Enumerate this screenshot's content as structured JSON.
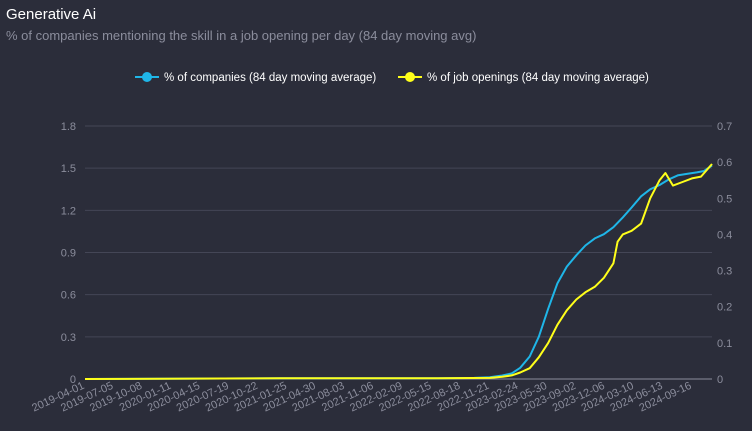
{
  "chart_data": {
    "type": "line",
    "title": "Generative Ai",
    "subtitle": "% of companies mentioning the skill in a job opening per day (84 day moving avg)",
    "xlabel": "",
    "ylabel": "",
    "x_ticks": [
      "2019-04-01",
      "2019-07-05",
      "2019-10-08",
      "2020-01-11",
      "2020-04-15",
      "2020-07-19",
      "2020-10-22",
      "2021-01-25",
      "2021-04-30",
      "2021-08-03",
      "2021-11-06",
      "2022-02-09",
      "2022-05-15",
      "2022-08-18",
      "2022-11-21",
      "2023-02-24",
      "2023-05-30",
      "2023-09-02",
      "2023-12-06",
      "2024-03-10",
      "2024-06-13",
      "2024-09-16"
    ],
    "y_left_ticks": [
      "0",
      "0.3",
      "0.6",
      "0.9",
      "1.2",
      "1.5",
      "1.8"
    ],
    "y_right_ticks": [
      "0",
      "0.1",
      "0.2",
      "0.3",
      "0.4",
      "0.5",
      "0.6",
      "0.7"
    ],
    "ylim_left": [
      0,
      1.8
    ],
    "ylim_right": [
      0,
      0.7
    ],
    "xlim": [
      "2019-04-01",
      "2024-11-20"
    ],
    "grid": true,
    "legend_position": "top-center",
    "series": [
      {
        "name": "% of companies (84 day moving average)",
        "axis": "left",
        "color": "#1fb6e8",
        "points": [
          [
            "2019-04-01",
            0
          ],
          [
            "2021-01-01",
            0.005
          ],
          [
            "2022-06-01",
            0.005
          ],
          [
            "2022-10-01",
            0.008
          ],
          [
            "2022-11-21",
            0.012
          ],
          [
            "2023-01-01",
            0.025
          ],
          [
            "2023-02-01",
            0.04
          ],
          [
            "2023-03-01",
            0.08
          ],
          [
            "2023-04-01",
            0.16
          ],
          [
            "2023-05-01",
            0.3
          ],
          [
            "2023-06-01",
            0.5
          ],
          [
            "2023-07-01",
            0.68
          ],
          [
            "2023-08-01",
            0.8
          ],
          [
            "2023-09-01",
            0.88
          ],
          [
            "2023-10-01",
            0.95
          ],
          [
            "2023-11-01",
            1.0
          ],
          [
            "2023-12-01",
            1.03
          ],
          [
            "2024-01-01",
            1.08
          ],
          [
            "2024-02-01",
            1.15
          ],
          [
            "2024-03-01",
            1.22
          ],
          [
            "2024-04-01",
            1.3
          ],
          [
            "2024-05-01",
            1.35
          ],
          [
            "2024-06-01",
            1.38
          ],
          [
            "2024-07-01",
            1.42
          ],
          [
            "2024-08-01",
            1.45
          ],
          [
            "2024-09-01",
            1.46
          ],
          [
            "2024-10-01",
            1.47
          ],
          [
            "2024-10-25",
            1.48
          ],
          [
            "2024-11-20",
            1.52
          ]
        ]
      },
      {
        "name": "% of job openings (84 day moving average)",
        "axis": "right",
        "color": "#ffff1a",
        "points": [
          [
            "2019-04-01",
            0
          ],
          [
            "2021-01-01",
            0.002
          ],
          [
            "2022-06-01",
            0.002
          ],
          [
            "2022-11-21",
            0.003
          ],
          [
            "2023-01-01",
            0.006
          ],
          [
            "2023-02-01",
            0.01
          ],
          [
            "2023-03-01",
            0.018
          ],
          [
            "2023-04-01",
            0.03
          ],
          [
            "2023-05-01",
            0.06
          ],
          [
            "2023-06-01",
            0.1
          ],
          [
            "2023-07-01",
            0.15
          ],
          [
            "2023-08-01",
            0.19
          ],
          [
            "2023-09-01",
            0.22
          ],
          [
            "2023-10-01",
            0.24
          ],
          [
            "2023-11-01",
            0.255
          ],
          [
            "2023-12-01",
            0.28
          ],
          [
            "2024-01-01",
            0.32
          ],
          [
            "2024-01-15",
            0.38
          ],
          [
            "2024-02-01",
            0.4
          ],
          [
            "2024-03-01",
            0.41
          ],
          [
            "2024-04-01",
            0.43
          ],
          [
            "2024-05-01",
            0.5
          ],
          [
            "2024-06-01",
            0.55
          ],
          [
            "2024-06-20",
            0.57
          ],
          [
            "2024-07-15",
            0.535
          ],
          [
            "2024-08-15",
            0.545
          ],
          [
            "2024-09-15",
            0.555
          ],
          [
            "2024-10-15",
            0.56
          ],
          [
            "2024-11-20",
            0.595
          ]
        ]
      }
    ]
  }
}
